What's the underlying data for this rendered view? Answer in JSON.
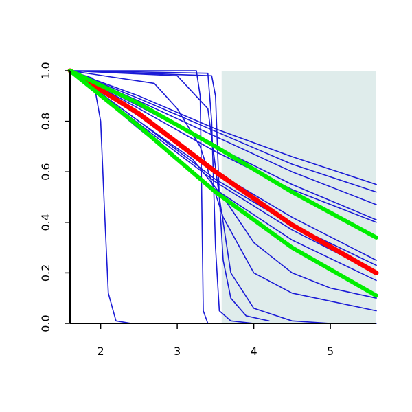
{
  "chart_data": {
    "type": "line",
    "xlim": [
      1.6,
      5.6
    ],
    "ylim": [
      0,
      1
    ],
    "xticks": [
      2,
      3,
      4,
      5
    ],
    "yticks": [
      {
        "value": 0,
        "label": "0.0"
      },
      {
        "value": 0.2,
        "label": "0.2"
      },
      {
        "value": 0.4,
        "label": "0.4"
      },
      {
        "value": 0.6,
        "label": "0.6"
      },
      {
        "value": 0.8,
        "label": "0.8"
      },
      {
        "value": 1,
        "label": "1.0"
      }
    ],
    "shaded_region": {
      "xmin": 3.58,
      "xmax": 5.6,
      "color": "#dfeceb"
    },
    "series": [
      {
        "color": "#1a1ad6",
        "line_width": 1.6,
        "x": [
          1.6,
          2.5,
          3.5,
          4.5,
          5.6
        ],
        "values": [
          1,
          0.9,
          0.77,
          0.66,
          0.55
        ]
      },
      {
        "color": "#1a1ad6",
        "line_width": 1.6,
        "x": [
          1.6,
          2.5,
          3.5,
          4.5,
          5.6
        ],
        "values": [
          1,
          0.89,
          0.76,
          0.63,
          0.52
        ]
      },
      {
        "color": "#1a1ad6",
        "line_width": 1.6,
        "x": [
          1.6,
          2.5,
          3.5,
          4.5,
          5.6
        ],
        "values": [
          1,
          0.88,
          0.74,
          0.6,
          0.47
        ]
      },
      {
        "color": "#1a1ad6",
        "line_width": 1.6,
        "x": [
          1.6,
          2.5,
          3.5,
          4.5,
          5.6
        ],
        "values": [
          1,
          0.86,
          0.7,
          0.55,
          0.41
        ]
      },
      {
        "color": "#1a1ad6",
        "line_width": 1.6,
        "x": [
          1.6,
          2.5,
          3.5,
          4.5,
          5.6
        ],
        "values": [
          1,
          0.85,
          0.68,
          0.53,
          0.4
        ]
      },
      {
        "color": "#1a1ad6",
        "line_width": 1.6,
        "x": [
          1.6,
          2.5,
          3.5,
          4.5,
          5.6
        ],
        "values": [
          1,
          0.82,
          0.6,
          0.42,
          0.25
        ]
      },
      {
        "color": "#1a1ad6",
        "line_width": 1.6,
        "x": [
          1.6,
          2.5,
          3.5,
          4.5,
          5.6
        ],
        "values": [
          1,
          0.8,
          0.57,
          0.39,
          0.23
        ]
      },
      {
        "color": "#1a1ad6",
        "line_width": 1.6,
        "x": [
          1.6,
          2.5,
          3.5,
          4.5,
          5.6
        ],
        "values": [
          1,
          0.79,
          0.56,
          0.37,
          0.2
        ]
      },
      {
        "color": "#1a1ad6",
        "line_width": 1.6,
        "x": [
          1.6,
          2.5,
          3.5,
          4.5,
          5.6
        ],
        "values": [
          1,
          0.77,
          0.53,
          0.33,
          0.17
        ]
      },
      {
        "color": "#1a1ad6",
        "line_width": 1.6,
        "x": [
          1.6,
          2.5,
          3.2,
          3.6,
          4.0,
          4.5,
          5.0,
          5.6
        ],
        "values": [
          1,
          0.8,
          0.65,
          0.5,
          0.32,
          0.2,
          0.14,
          0.1
        ]
      },
      {
        "color": "#1a1ad6",
        "line_width": 1.6,
        "x": [
          1.6,
          2.7,
          3.0,
          3.3,
          3.6,
          4.0,
          4.5,
          5.6
        ],
        "values": [
          1,
          0.95,
          0.85,
          0.7,
          0.42,
          0.2,
          0.12,
          0.05
        ]
      },
      {
        "color": "#1a1ad6",
        "line_width": 1.6,
        "x": [
          1.6,
          1.9,
          2.0,
          2.05,
          2.1,
          2.2,
          2.4,
          3.3
        ],
        "values": [
          1,
          0.97,
          0.8,
          0.45,
          0.12,
          0.01,
          0,
          0
        ]
      },
      {
        "color": "#1a1ad6",
        "line_width": 1.6,
        "x": [
          1.6,
          3.25,
          3.3,
          3.32,
          3.34,
          3.4,
          5.6
        ],
        "values": [
          1,
          1,
          0.9,
          0.5,
          0.05,
          0,
          0
        ]
      },
      {
        "color": "#1a1ad6",
        "line_width": 1.6,
        "x": [
          1.6,
          3.4,
          3.45,
          3.5,
          3.55,
          3.7,
          4.0
        ],
        "values": [
          1,
          0.99,
          0.8,
          0.3,
          0.05,
          0.01,
          0
        ]
      },
      {
        "color": "#1a1ad6",
        "line_width": 1.6,
        "x": [
          1.6,
          3.45,
          3.5,
          3.55,
          3.6,
          3.7,
          3.9,
          4.2
        ],
        "values": [
          1,
          0.98,
          0.9,
          0.5,
          0.25,
          0.1,
          0.03,
          0.01
        ]
      },
      {
        "color": "#1a1ad6",
        "line_width": 1.6,
        "x": [
          1.6,
          3.0,
          3.4,
          3.55,
          3.7,
          4.0,
          4.5,
          5.0
        ],
        "values": [
          1,
          0.98,
          0.85,
          0.5,
          0.2,
          0.06,
          0.01,
          0
        ]
      },
      {
        "color": "#ff0000",
        "line_width": 7,
        "x": [
          1.6,
          2.5,
          3.5,
          4.5,
          5.6
        ],
        "values": [
          1,
          0.83,
          0.6,
          0.39,
          0.2
        ]
      },
      {
        "color": "#00ee00",
        "line_width": 6,
        "x": [
          1.6,
          2.5,
          3.5,
          4.5,
          5.6
        ],
        "values": [
          1,
          0.87,
          0.7,
          0.52,
          0.34
        ]
      },
      {
        "color": "#00ee00",
        "line_width": 6,
        "x": [
          1.6,
          2.5,
          3.5,
          4.5,
          5.6
        ],
        "values": [
          1,
          0.78,
          0.52,
          0.3,
          0.11
        ]
      }
    ]
  }
}
